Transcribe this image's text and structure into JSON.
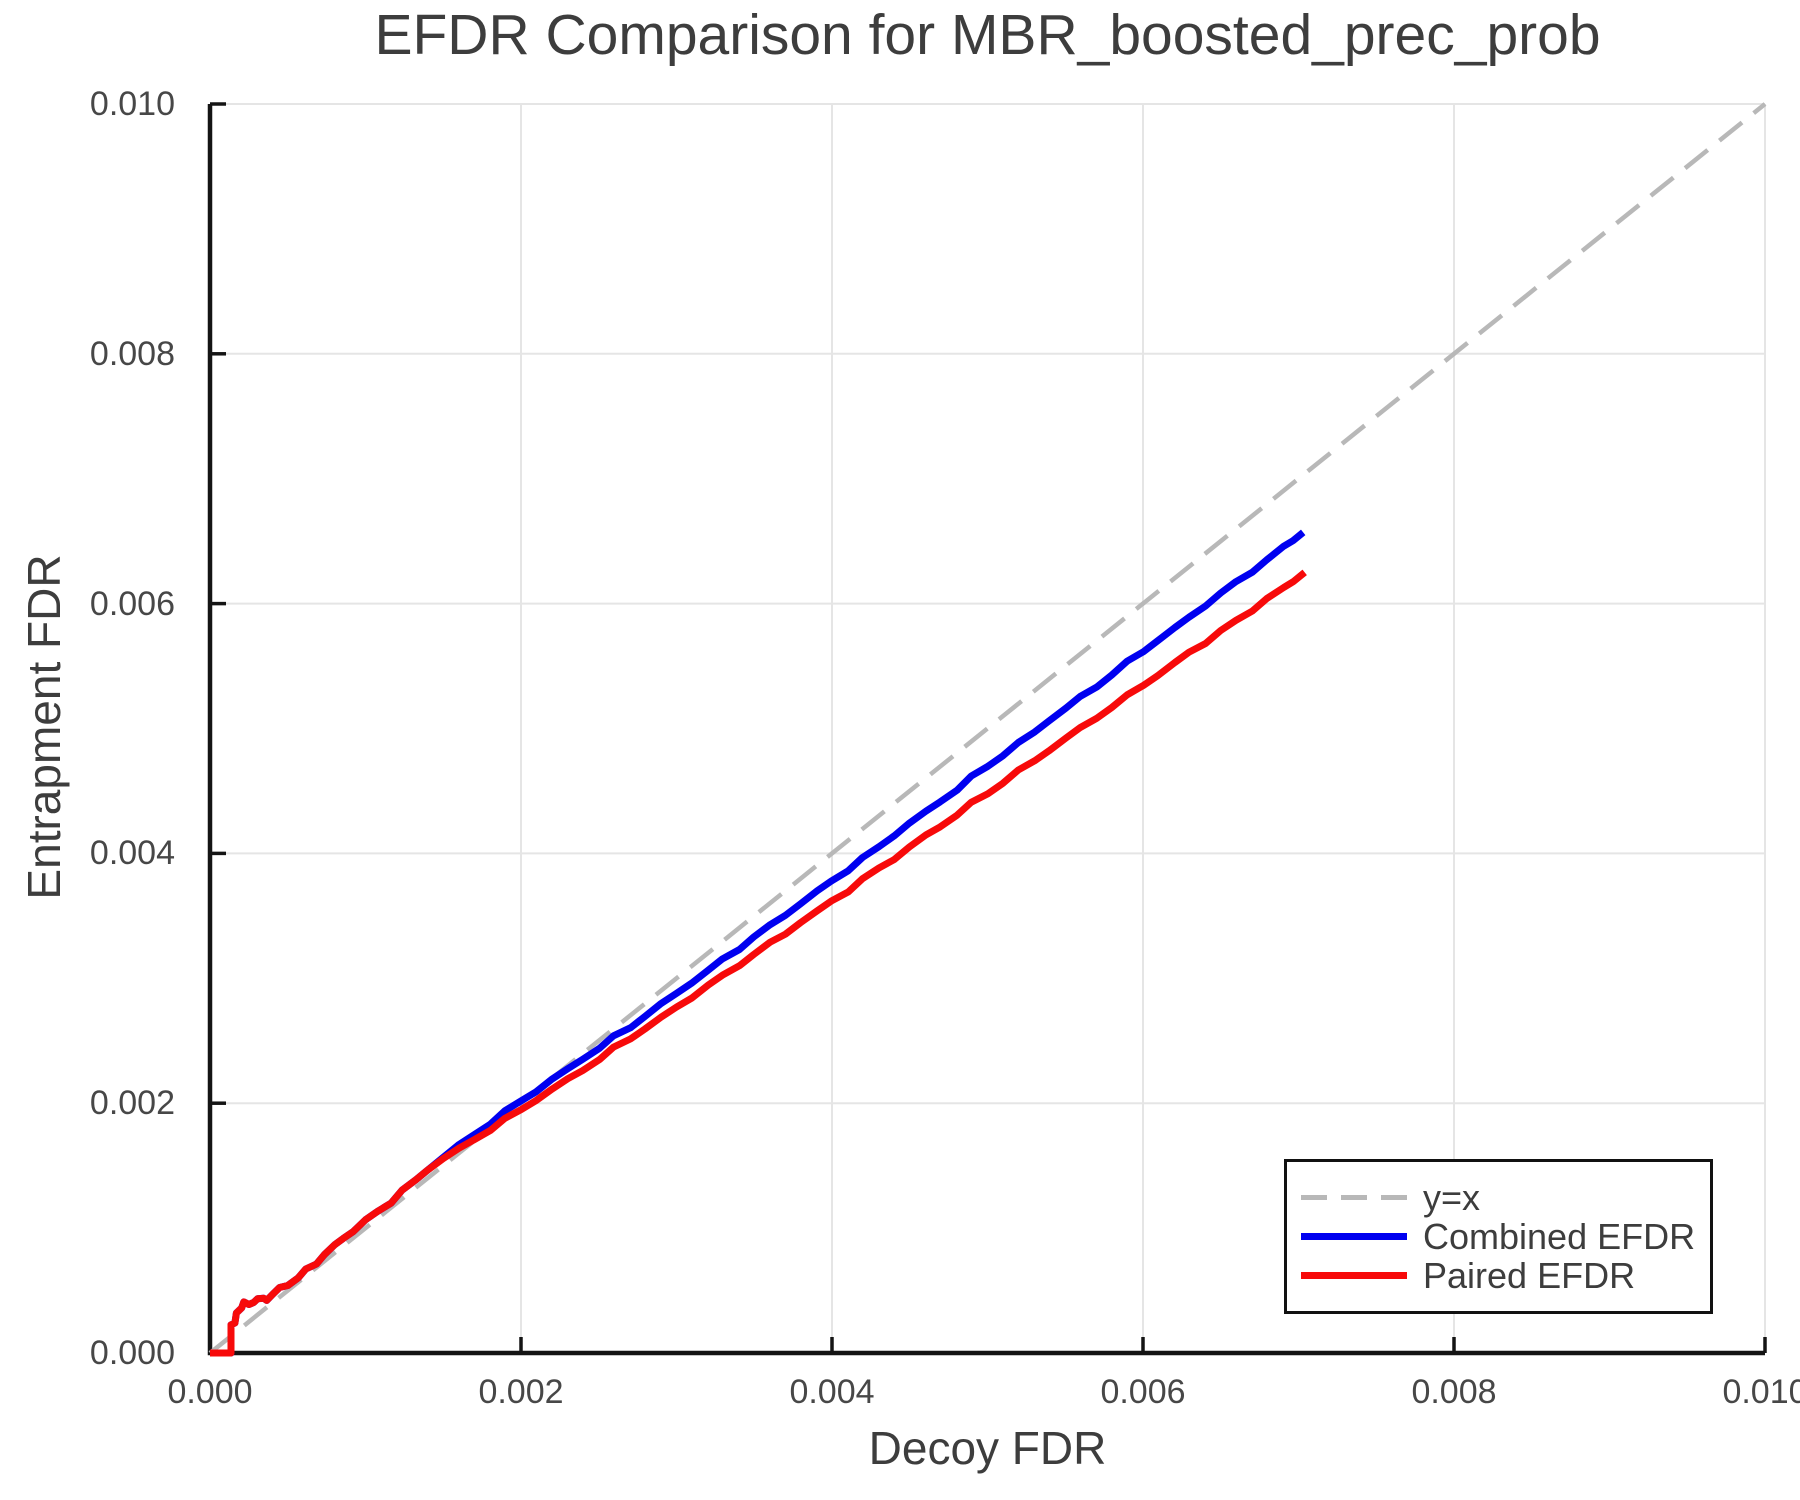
{
  "chart_data": {
    "type": "line",
    "title": "EFDR Comparison for MBR_boosted_prec_prob",
    "xlabel": "Decoy FDR",
    "ylabel": "Entrapment FDR",
    "xlim": [
      0.0,
      0.01
    ],
    "ylim": [
      0.0,
      0.01
    ],
    "grid": true,
    "legend_position": "lower right",
    "colors": {
      "identity": "#b8b8b8",
      "combined": "#0000f0",
      "paired": "#f70a0a",
      "spine": "#141414",
      "gridline": "#e5e5e5",
      "text": "#3d3d3d"
    },
    "x_ticks": [
      {
        "value": 0.0,
        "label": "0.000"
      },
      {
        "value": 0.002,
        "label": "0.002"
      },
      {
        "value": 0.004,
        "label": "0.004"
      },
      {
        "value": 0.006,
        "label": "0.006"
      },
      {
        "value": 0.008,
        "label": "0.008"
      },
      {
        "value": 0.01,
        "label": "0.010"
      }
    ],
    "y_ticks": [
      {
        "value": 0.0,
        "label": "0.000"
      },
      {
        "value": 0.002,
        "label": "0.002"
      },
      {
        "value": 0.004,
        "label": "0.004"
      },
      {
        "value": 0.006,
        "label": "0.006"
      },
      {
        "value": 0.008,
        "label": "0.008"
      },
      {
        "value": 0.01,
        "label": "0.010"
      }
    ],
    "series": [
      {
        "name": "y=x",
        "style": "dashed",
        "color": "#b8b8b8",
        "width": 4.5,
        "points": [
          [
            0.0,
            0.0
          ],
          [
            0.01,
            0.01
          ]
        ]
      },
      {
        "name": "Combined EFDR",
        "style": "solid",
        "color": "#0000f0",
        "width": 7,
        "points": [
          [
            0.0,
            0.0
          ],
          [
            0.000135,
            0.0
          ],
          [
            0.000135,
            0.000225
          ],
          [
            0.00016,
            0.00024
          ],
          [
            0.00017,
            0.00032
          ],
          [
            0.0002,
            0.00036
          ],
          [
            0.00022,
            0.0004
          ],
          [
            0.00025,
            0.000395
          ],
          [
            0.00028,
            0.00041
          ],
          [
            0.00031,
            0.000425
          ],
          [
            0.00034,
            0.00044
          ],
          [
            0.00037,
            0.00043
          ],
          [
            0.0004,
            0.000465
          ],
          [
            0.00045,
            0.00052
          ],
          [
            0.0005,
            0.00055
          ],
          [
            0.000566,
            0.0006
          ],
          [
            0.00062,
            0.000664
          ],
          [
            0.00068,
            0.00072
          ],
          [
            0.00074,
            0.00079
          ],
          [
            0.0008,
            0.00086
          ],
          [
            0.00086,
            0.00092
          ],
          [
            0.00092,
            0.00098
          ],
          [
            0.001,
            0.00106
          ],
          [
            0.00108,
            0.00113
          ],
          [
            0.00116,
            0.00121
          ],
          [
            0.00124,
            0.0013
          ],
          [
            0.00132,
            0.00138
          ],
          [
            0.0014,
            0.00147
          ],
          [
            0.0015,
            0.00157
          ],
          [
            0.0016,
            0.00166
          ],
          [
            0.0017,
            0.00175
          ],
          [
            0.0018,
            0.00184
          ],
          [
            0.0019,
            0.00193
          ],
          [
            0.002,
            0.00202
          ],
          [
            0.0021,
            0.0021
          ],
          [
            0.0022,
            0.00219
          ],
          [
            0.0023,
            0.00227
          ],
          [
            0.0024,
            0.00236
          ],
          [
            0.0025,
            0.00244
          ],
          [
            0.0026,
            0.00253
          ],
          [
            0.0027,
            0.00261
          ],
          [
            0.0028,
            0.0027
          ],
          [
            0.0029,
            0.00279
          ],
          [
            0.003,
            0.00288
          ],
          [
            0.0031,
            0.00297
          ],
          [
            0.0032,
            0.00306
          ],
          [
            0.0033,
            0.00315
          ],
          [
            0.0034,
            0.00324
          ],
          [
            0.0035,
            0.00333
          ],
          [
            0.0036,
            0.00342
          ],
          [
            0.0037,
            0.00351
          ],
          [
            0.0038,
            0.0036
          ],
          [
            0.0039,
            0.00369
          ],
          [
            0.004,
            0.00378
          ],
          [
            0.0041,
            0.00387
          ],
          [
            0.0042,
            0.00396
          ],
          [
            0.0043,
            0.00405
          ],
          [
            0.0044,
            0.00415
          ],
          [
            0.0045,
            0.00424
          ],
          [
            0.0046,
            0.00433
          ],
          [
            0.0047,
            0.00442
          ],
          [
            0.0048,
            0.00451
          ],
          [
            0.0049,
            0.00461
          ],
          [
            0.005,
            0.0047
          ],
          [
            0.0051,
            0.00479
          ],
          [
            0.0052,
            0.00488
          ],
          [
            0.0053,
            0.00497
          ],
          [
            0.0054,
            0.00507
          ],
          [
            0.0055,
            0.00516
          ],
          [
            0.0056,
            0.00525
          ],
          [
            0.0057,
            0.00534
          ],
          [
            0.0058,
            0.00543
          ],
          [
            0.0059,
            0.00553
          ],
          [
            0.006,
            0.00562
          ],
          [
            0.0061,
            0.00571
          ],
          [
            0.0062,
            0.0058
          ],
          [
            0.0063,
            0.00589
          ],
          [
            0.0064,
            0.00599
          ],
          [
            0.0065,
            0.00608
          ],
          [
            0.0066,
            0.00617
          ],
          [
            0.0067,
            0.00626
          ],
          [
            0.0068,
            0.00635
          ],
          [
            0.0069,
            0.00645
          ],
          [
            0.00697,
            0.00651
          ],
          [
            0.00703,
            0.00657
          ]
        ]
      },
      {
        "name": "Paired EFDR",
        "style": "solid",
        "color": "#f70a0a",
        "width": 7,
        "points": [
          [
            0.0,
            0.0
          ],
          [
            0.000135,
            0.0
          ],
          [
            0.000135,
            0.000225
          ],
          [
            0.00016,
            0.00024
          ],
          [
            0.00017,
            0.00032
          ],
          [
            0.0002,
            0.00036
          ],
          [
            0.00022,
            0.0004
          ],
          [
            0.00025,
            0.000395
          ],
          [
            0.00028,
            0.00041
          ],
          [
            0.00031,
            0.000425
          ],
          [
            0.00034,
            0.00044
          ],
          [
            0.00037,
            0.00043
          ],
          [
            0.0004,
            0.000465
          ],
          [
            0.00045,
            0.00052
          ],
          [
            0.0005,
            0.00055
          ],
          [
            0.000566,
            0.0006
          ],
          [
            0.00062,
            0.000664
          ],
          [
            0.00068,
            0.00072
          ],
          [
            0.00074,
            0.00079
          ],
          [
            0.0008,
            0.00086
          ],
          [
            0.00086,
            0.00092
          ],
          [
            0.00092,
            0.00098
          ],
          [
            0.001,
            0.00106
          ],
          [
            0.00108,
            0.00113
          ],
          [
            0.00116,
            0.00121
          ],
          [
            0.00124,
            0.0013
          ],
          [
            0.00132,
            0.00138
          ],
          [
            0.0014,
            0.00147
          ],
          [
            0.0015,
            0.00156
          ],
          [
            0.0016,
            0.00163
          ],
          [
            0.0017,
            0.00171
          ],
          [
            0.0018,
            0.00179
          ],
          [
            0.0019,
            0.00187
          ],
          [
            0.002,
            0.00195
          ],
          [
            0.0021,
            0.00203
          ],
          [
            0.0022,
            0.00211
          ],
          [
            0.0023,
            0.00219
          ],
          [
            0.0024,
            0.00227
          ],
          [
            0.0025,
            0.00235
          ],
          [
            0.0026,
            0.00244
          ],
          [
            0.0027,
            0.00252
          ],
          [
            0.0028,
            0.0026
          ],
          [
            0.0029,
            0.00268
          ],
          [
            0.003,
            0.00277
          ],
          [
            0.0031,
            0.00285
          ],
          [
            0.0032,
            0.00294
          ],
          [
            0.0033,
            0.00302
          ],
          [
            0.0034,
            0.00311
          ],
          [
            0.0035,
            0.00319
          ],
          [
            0.0036,
            0.00328
          ],
          [
            0.0037,
            0.00336
          ],
          [
            0.0038,
            0.00345
          ],
          [
            0.0039,
            0.00353
          ],
          [
            0.004,
            0.00362
          ],
          [
            0.0041,
            0.0037
          ],
          [
            0.0042,
            0.00379
          ],
          [
            0.0043,
            0.00388
          ],
          [
            0.0044,
            0.00396
          ],
          [
            0.0045,
            0.00405
          ],
          [
            0.0046,
            0.00414
          ],
          [
            0.0047,
            0.00422
          ],
          [
            0.0048,
            0.00431
          ],
          [
            0.0049,
            0.0044
          ],
          [
            0.005,
            0.00448
          ],
          [
            0.0051,
            0.00457
          ],
          [
            0.0052,
            0.00466
          ],
          [
            0.0053,
            0.00474
          ],
          [
            0.0054,
            0.00483
          ],
          [
            0.0055,
            0.00492
          ],
          [
            0.0056,
            0.005
          ],
          [
            0.0057,
            0.00509
          ],
          [
            0.0058,
            0.00517
          ],
          [
            0.0059,
            0.00526
          ],
          [
            0.006,
            0.00535
          ],
          [
            0.0061,
            0.00543
          ],
          [
            0.0062,
            0.00552
          ],
          [
            0.0063,
            0.00561
          ],
          [
            0.0064,
            0.00569
          ],
          [
            0.0065,
            0.00578
          ],
          [
            0.0066,
            0.00586
          ],
          [
            0.0067,
            0.00595
          ],
          [
            0.0068,
            0.00604
          ],
          [
            0.0069,
            0.00612
          ],
          [
            0.00697,
            0.00618
          ],
          [
            0.00704,
            0.00625
          ]
        ]
      }
    ]
  }
}
